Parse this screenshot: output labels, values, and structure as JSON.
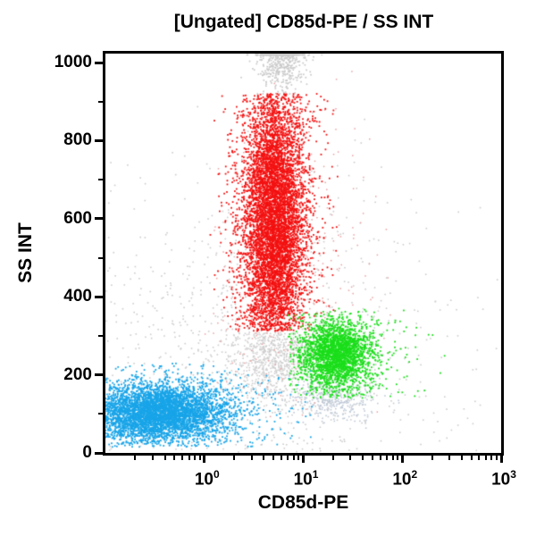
{
  "figure": {
    "title": "[Ungated] CD85d-PE / SS INT"
  },
  "chart_data": {
    "type": "scatter",
    "subtype": "flow-cytometry-dot-plot",
    "title": "[Ungated] CD85d-PE / SS INT",
    "xlabel": "CD85d-PE",
    "ylabel": "SS INT",
    "x_scale": "log",
    "x_range_log10": [
      -1,
      3
    ],
    "x_tick_exponents": [
      0,
      1,
      2,
      3
    ],
    "x_minor_tick_multiples": [
      2,
      3,
      4,
      5,
      6,
      7,
      8,
      9
    ],
    "y_scale": "linear",
    "y_range": [
      0,
      1023
    ],
    "y_major_ticks": [
      0,
      200,
      400,
      600,
      800,
      1000
    ],
    "y_minor_tick_step": 100,
    "grid": false,
    "legend": false,
    "frame_color": "#000000",
    "background_color": "#ffffff",
    "populations": [
      {
        "name": "background-debris",
        "color": "#cccccc",
        "n": 900,
        "size": 1.6,
        "x_log_mean": 0.5,
        "x_log_sd": 1.05,
        "y_mean": 230,
        "y_sd": 240,
        "clip": {
          "x_min": -1.0,
          "x_max": 3.0,
          "y_min": 2,
          "y_max": 1022
        }
      },
      {
        "name": "saturated-events",
        "color": "#c9c9c9",
        "n": 520,
        "size": 1.7,
        "x_log_mean": 0.78,
        "x_log_sd": 0.13,
        "y_mean": 1015,
        "y_sd": 45,
        "clip": {
          "x_min": 0.2,
          "x_max": 1.25,
          "y_min": 920,
          "y_max": 1150
        },
        "clamp": {
          "y_max": 1020
        }
      },
      {
        "name": "sub-red-debris",
        "color": "#cfcfcf",
        "n": 650,
        "size": 1.6,
        "x_log_mean": 0.7,
        "x_log_sd": 0.2,
        "y_mean": 255,
        "y_sd": 55,
        "clip": {
          "x_min": 0.1,
          "x_max": 1.2,
          "y_min": 120,
          "y_max": 308
        }
      },
      {
        "name": "sub-green-debris",
        "color": "#bfc9d6",
        "n": 380,
        "size": 1.6,
        "x_log_mean": 1.32,
        "x_log_sd": 0.22,
        "y_mean": 140,
        "y_sd": 30,
        "clip": {
          "x_min": 0.7,
          "x_max": 2.1,
          "y_min": 60,
          "y_max": 200
        }
      },
      {
        "name": "red-fringe-scatter",
        "color": "#eaa0a0",
        "n": 280,
        "size": 1.5,
        "x_log_mean": 0.85,
        "x_log_sd": 0.45,
        "y_mean": 420,
        "y_sd": 200,
        "clip": {
          "x_min": 0.0,
          "x_max": 2.2,
          "y_min": 40,
          "y_max": 980
        }
      },
      {
        "name": "lymphocytes",
        "color": "#18a4e8",
        "n": 5200,
        "size": 1.8,
        "x_log_mean": -0.45,
        "x_log_sd": 0.33,
        "y_mean": 103,
        "y_sd": 36,
        "halo": {
          "frac": 0.22,
          "scale": 2.0
        },
        "clip": {
          "x_min": -1.6,
          "x_max": 1.1,
          "y_min": 15,
          "y_max": 230
        }
      },
      {
        "name": "granulocytes",
        "color": "#f31111",
        "n": 6800,
        "size": 1.8,
        "x_log_mean": 0.71,
        "x_log_sd": 0.155,
        "y_mean": 590,
        "y_sd": 185,
        "halo": {
          "frac": 0.15,
          "scale": 1.8
        },
        "clip": {
          "x_min": 0.05,
          "x_max": 1.35,
          "y_min": 312,
          "y_max": 920
        }
      },
      {
        "name": "monocytes",
        "color": "#1ade1a",
        "n": 2600,
        "size": 1.8,
        "x_log_mean": 1.33,
        "x_log_sd": 0.17,
        "y_mean": 252,
        "y_sd": 40,
        "halo": {
          "frac": 0.28,
          "scale": 2.1
        },
        "clip": {
          "x_min": 0.85,
          "x_max": 2.55,
          "y_min": 140,
          "y_max": 370
        }
      }
    ]
  }
}
